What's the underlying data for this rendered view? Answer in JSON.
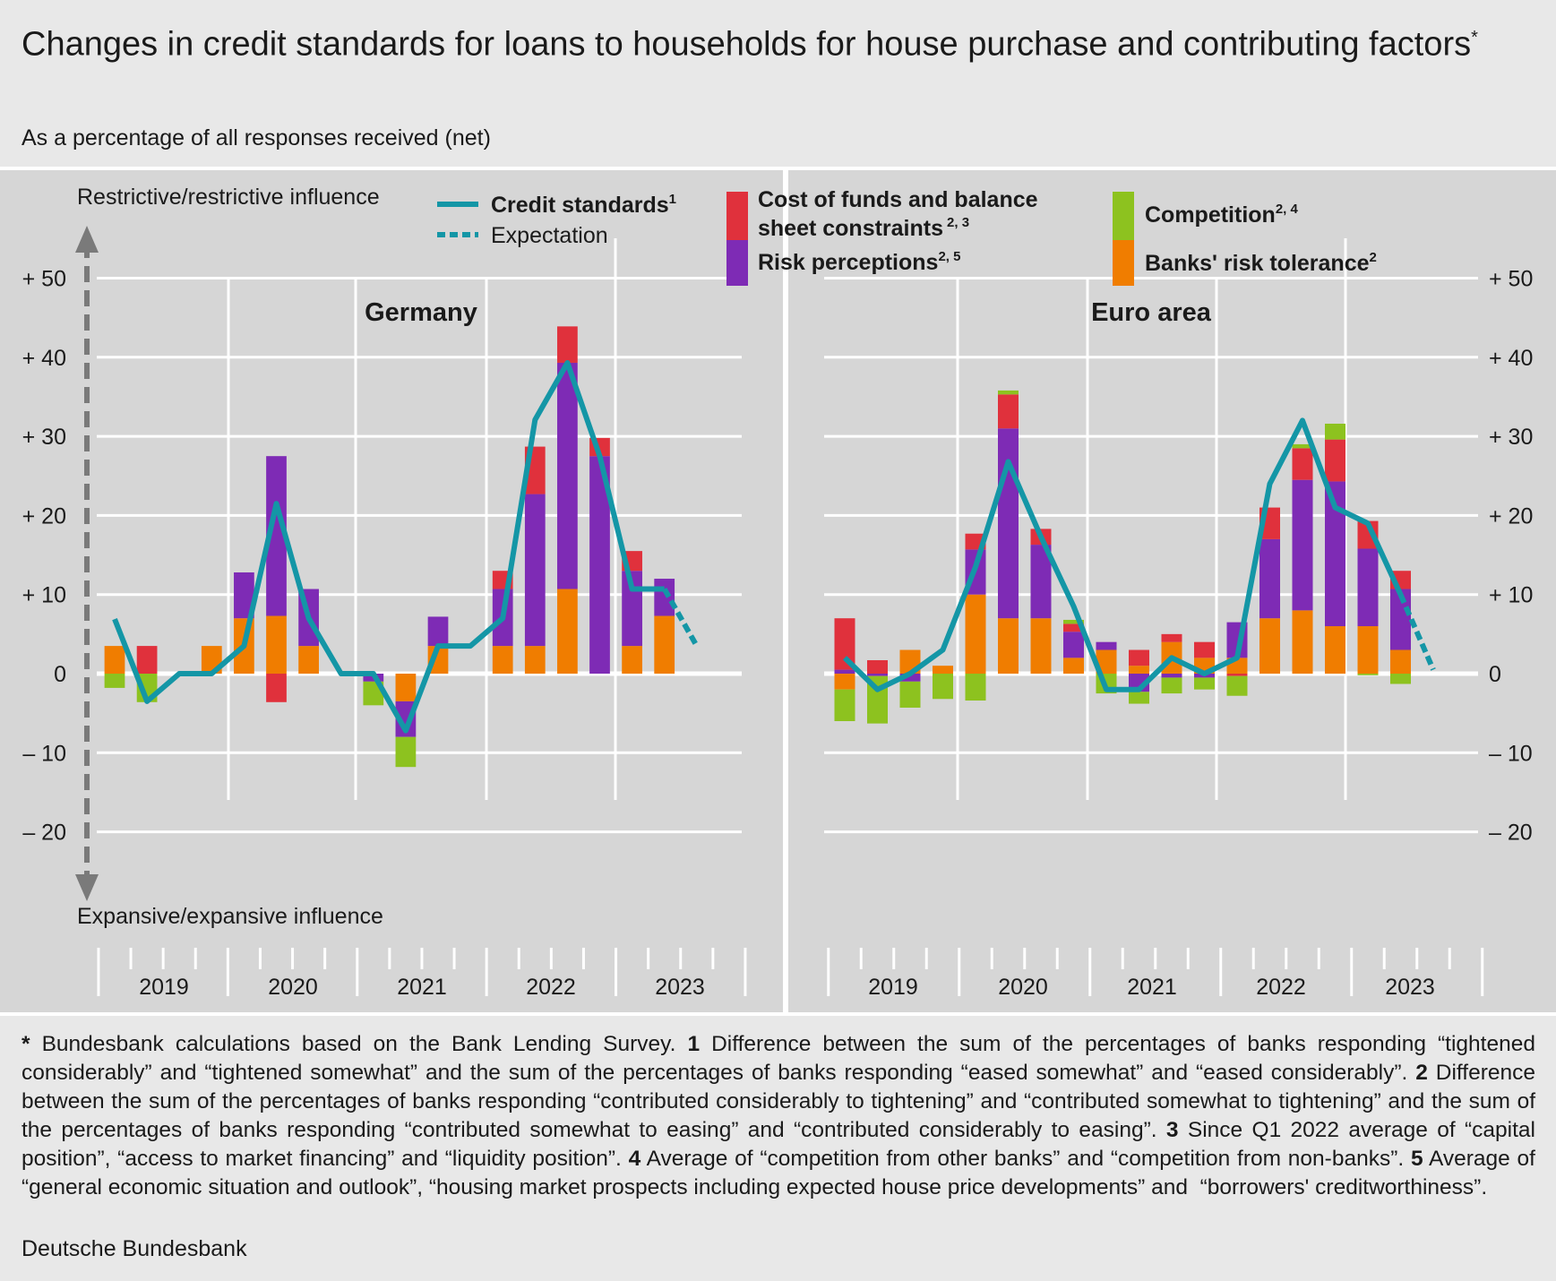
{
  "title": "Changes in credit standards for loans to households for house purchase and contributing factors",
  "title_marker": "*",
  "subtitle": "As a percentage of all responses received (net)",
  "axis_top_label": "Restrictive/restrictive influence",
  "axis_bottom_label": "Expansive/expansive influence",
  "legend": {
    "credit_standards": "Credit standards",
    "credit_standards_sup": "1",
    "expectation": "Expectation",
    "cost_of_funds_line1": "Cost of funds and balance",
    "cost_of_funds_line2": "sheet constraints",
    "cost_of_funds_sup": "2, 3",
    "risk_perceptions": "Risk perceptions",
    "risk_perceptions_sup": "2, 5",
    "competition": "Competition",
    "competition_sup": "2, 4",
    "risk_tolerance": "Banks' risk tolerance",
    "risk_tolerance_sup": "2"
  },
  "colors": {
    "cost": "#e0313c",
    "risk": "#7e2bb5",
    "competition": "#8dc21f",
    "tolerance": "#f07d00",
    "line": "#1496a6",
    "background": "#d6d6d6",
    "grid": "#ffffff"
  },
  "chart_data": [
    {
      "type": "bar",
      "panel": "Germany",
      "title": "Germany",
      "stacked": true,
      "ylim": [
        -20,
        50
      ],
      "yticks": [
        "+ 50",
        "+ 40",
        "+ 30",
        "+ 20",
        "+ 10",
        "0",
        "– 10",
        "– 20"
      ],
      "ytick_values": [
        50,
        40,
        30,
        20,
        10,
        0,
        -10,
        -20
      ],
      "years": [
        "2019",
        "2020",
        "2021",
        "2022",
        "2023"
      ],
      "quarters": [
        "2019 Q1",
        "2019 Q2",
        "2019 Q3",
        "2019 Q4",
        "2020 Q1",
        "2020 Q2",
        "2020 Q3",
        "2020 Q4",
        "2021 Q1",
        "2021 Q2",
        "2021 Q3",
        "2021 Q4",
        "2022 Q1",
        "2022 Q2",
        "2022 Q3",
        "2022 Q4",
        "2023 Q1",
        "2023 Q2",
        "2023 Q3",
        "2023 Q4"
      ],
      "series": [
        {
          "name": "Banks' risk tolerance",
          "key": "tolerance",
          "values": [
            3.5,
            0,
            0,
            3.5,
            7,
            7.3,
            3.5,
            0,
            0,
            -3.5,
            3.5,
            0,
            3.5,
            3.5,
            10.7,
            0,
            3.5,
            7.3,
            0,
            0
          ]
        },
        {
          "name": "Risk perceptions",
          "key": "risk",
          "values": [
            0,
            0,
            0,
            0,
            5.8,
            20.2,
            7.2,
            0,
            -1,
            -4.5,
            3.7,
            0,
            7.2,
            19.2,
            28.6,
            27.5,
            9.5,
            4.7,
            0,
            0
          ]
        },
        {
          "name": "Cost of funds and balance sheet constraints",
          "key": "cost",
          "values": [
            0,
            3.5,
            0,
            0,
            0,
            -3.6,
            0,
            0,
            0,
            0,
            0,
            0,
            2.3,
            6,
            4.6,
            2.3,
            2.5,
            0,
            0,
            0
          ]
        },
        {
          "name": "Competition",
          "key": "competition",
          "values": [
            -1.8,
            -3.6,
            0,
            0,
            0,
            0,
            0,
            0,
            -3,
            -3.8,
            0,
            0,
            0,
            0,
            0,
            0,
            0,
            0,
            0,
            0
          ]
        }
      ],
      "credit_standards": [
        6.9,
        -3.5,
        0,
        0,
        3.5,
        21.5,
        7,
        0,
        0,
        -7.2,
        3.5,
        3.5,
        7,
        32.1,
        39.3,
        27.5,
        10.7,
        10.7,
        3.5
      ],
      "expectation": [
        10.7,
        3.5
      ]
    },
    {
      "type": "bar",
      "panel": "Euro area",
      "title": "Euro area",
      "stacked": true,
      "ylim": [
        -20,
        50
      ],
      "yticks": [
        "+ 50",
        "+ 40",
        "+ 30",
        "+ 20",
        "+ 10",
        "0",
        "– 10",
        "– 20"
      ],
      "ytick_values": [
        50,
        40,
        30,
        20,
        10,
        0,
        -10,
        -20
      ],
      "years": [
        "2019",
        "2020",
        "2021",
        "2022",
        "2023"
      ],
      "quarters": [
        "2019 Q1",
        "2019 Q2",
        "2019 Q3",
        "2019 Q4",
        "2020 Q1",
        "2020 Q2",
        "2020 Q3",
        "2020 Q4",
        "2021 Q1",
        "2021 Q2",
        "2021 Q3",
        "2021 Q4",
        "2022 Q1",
        "2022 Q2",
        "2022 Q3",
        "2022 Q4",
        "2023 Q1",
        "2023 Q2",
        "2023 Q3",
        "2023 Q4"
      ],
      "series": [
        {
          "name": "Banks' risk tolerance",
          "key": "tolerance",
          "values": [
            -2,
            0,
            3,
            1,
            10,
            7,
            7,
            2,
            3,
            1,
            4,
            2,
            2,
            7,
            8,
            6,
            6,
            3,
            0,
            0
          ]
        },
        {
          "name": "Risk perceptions",
          "key": "risk",
          "values": [
            0.5,
            -0.3,
            -1,
            0,
            5.7,
            24,
            9.3,
            3.3,
            1,
            -2.3,
            -0.5,
            -0.5,
            4.5,
            10,
            16.5,
            18.3,
            9.8,
            7.7,
            0,
            0
          ]
        },
        {
          "name": "Cost of funds and balance sheet constraints",
          "key": "cost",
          "values": [
            6.5,
            1.7,
            0,
            0,
            2,
            4.3,
            2,
            1,
            0,
            2,
            1,
            2,
            -0.3,
            4,
            4,
            5.3,
            3.5,
            2.3,
            0,
            0
          ]
        },
        {
          "name": "Competition",
          "key": "competition",
          "values": [
            -4,
            -6,
            -3.3,
            -3.2,
            -3.4,
            0.5,
            0,
            0.5,
            -2.5,
            -1.5,
            -2,
            -1.5,
            -2.5,
            0,
            0.5,
            2,
            -0.2,
            -1.3,
            0,
            0
          ]
        }
      ],
      "credit_standards": [
        2,
        -2,
        0,
        3,
        13.5,
        26.8,
        17.3,
        8.5,
        -2,
        -2,
        2,
        0,
        2,
        24,
        32,
        21,
        19,
        10,
        0.5
      ],
      "expectation": [
        10,
        0.5
      ]
    }
  ],
  "footnote": {
    "star": "*",
    "star_text": " Bundesbank calculations based on the Bank Lending Survey. ",
    "n1": "1",
    "n1_text": " Difference between the sum of the percentages of banks responding “tightened considerably” and “tightened somewhat” and the sum of the percentages of banks responding “eased somewhat” and “eased considerably”. ",
    "n2": "2",
    "n2_text": " Difference between the sum of the percentages of banks responding “contributed considerably to tightening” and “contributed somewhat to tightening” and the sum of the percentages of banks responding “contributed somewhat to easing” and “contributed considerably to easing”. ",
    "n3": "3",
    "n3_text": " Since Q1 2022 average of “capital position”, “access to market financing” and “liquidity position”. ",
    "n4": "4",
    "n4_text": " Average of “competition from other banks” and “competition from non-banks”. ",
    "n5": "5",
    "n5_text": " Average of “general economic situation and outlook”, “housing market prospects including expected house price developments” and  “borrowers' creditworthiness”."
  },
  "source": "Deutsche Bundesbank"
}
